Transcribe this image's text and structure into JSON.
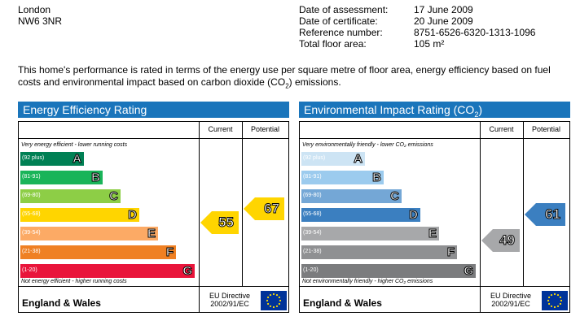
{
  "address": {
    "city": "London",
    "postcode": "NW6 3NR"
  },
  "meta": {
    "assessment_label": "Date of assessment:",
    "assessment_value": "17 June 2009",
    "certificate_label": "Date of certificate:",
    "certificate_value": "20 June 2009",
    "reference_label": "Reference number:",
    "reference_value": "8751-6526-6320-1313-1096",
    "floor_label": "Total floor area:",
    "floor_value": "105 m²"
  },
  "intro": {
    "text_before": "This home's performance is rated in terms of the energy use per square metre of floor area, energy efficiency based on fuel costs and environmental impact based on carbon dioxide (CO",
    "sub": "2",
    "text_after": ") emissions."
  },
  "energy": {
    "title": "Energy Efficiency Rating",
    "current_label": "Current",
    "potential_label": "Potential",
    "top_caption": "Very energy efficient - lower running costs",
    "bottom_caption": "Not energy efficient - higher running costs",
    "bands": [
      {
        "range": "(92 plus)",
        "letter": "A",
        "color": "#008054"
      },
      {
        "range": "(81-91)",
        "letter": "B",
        "color": "#19b459"
      },
      {
        "range": "(69-80)",
        "letter": "C",
        "color": "#8dce46"
      },
      {
        "range": "(55-68)",
        "letter": "D",
        "color": "#ffd500"
      },
      {
        "range": "(39-54)",
        "letter": "E",
        "color": "#fcaa65"
      },
      {
        "range": "(21-38)",
        "letter": "F",
        "color": "#ef8023"
      },
      {
        "range": "(1-20)",
        "letter": "G",
        "color": "#e9153b"
      }
    ],
    "current": {
      "value": "55",
      "color": "#ffd500"
    },
    "potential": {
      "value": "67",
      "color": "#ffd500"
    },
    "footer": "England & Wales",
    "directive_line1": "EU Directive",
    "directive_line2": "2002/91/EC"
  },
  "environment": {
    "title_main": "Environmental Impact Rating (CO",
    "title_sub": "2",
    "title_end": ")",
    "current_label": "Current",
    "potential_label": "Potential",
    "top_caption": "Very environmentally friendly - lower CO₂ emissions",
    "bottom_caption": "Not environmentally friendly - higher CO₂ emissions",
    "bands": [
      {
        "range": "(92 plus)",
        "letter": "A",
        "color": "#cde4f4"
      },
      {
        "range": "(81-91)",
        "letter": "B",
        "color": "#9ccbee"
      },
      {
        "range": "(69-80)",
        "letter": "C",
        "color": "#74a7d6"
      },
      {
        "range": "(55-68)",
        "letter": "D",
        "color": "#3b7fc0"
      },
      {
        "range": "(39-54)",
        "letter": "E",
        "color": "#a7a8aa"
      },
      {
        "range": "(21-38)",
        "letter": "F",
        "color": "#8f9092"
      },
      {
        "range": "(1-20)",
        "letter": "G",
        "color": "#7b7c7e"
      }
    ],
    "current": {
      "value": "49",
      "color": "#a7a8aa"
    },
    "potential": {
      "value": "61",
      "color": "#3b7fc0"
    },
    "footer": "England & Wales",
    "directive_line1": "EU Directive",
    "directive_line2": "2002/91/EC"
  }
}
